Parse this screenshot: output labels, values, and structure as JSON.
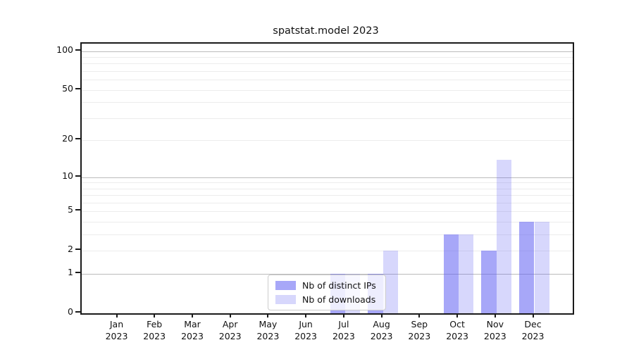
{
  "title": "spatstat.model 2023",
  "colors": {
    "bar_ips": "rgba(95,95,242,0.55)",
    "bar_downloads": "rgba(95,95,242,0.25)",
    "grid_major": "#bbbbbb",
    "grid_minor": "#ececec",
    "spine": "#1a1a1a",
    "text": "#111111",
    "legend_border": "#cccccc",
    "legend_bg": "rgba(255,255,255,0.8)"
  },
  "chart_data": {
    "type": "bar",
    "title": "spatstat.model 2023",
    "categories": [
      "Jan 2023",
      "Feb 2023",
      "Mar 2023",
      "Apr 2023",
      "May 2023",
      "Jun 2023",
      "Jul 2023",
      "Aug 2023",
      "Sep 2023",
      "Oct 2023",
      "Nov 2023",
      "Dec 2023"
    ],
    "series": [
      {
        "name": "Nb of distinct IPs",
        "values": [
          0,
          0,
          0,
          0,
          0,
          0,
          1,
          1,
          0,
          3,
          2,
          4
        ]
      },
      {
        "name": "Nb of downloads",
        "values": [
          0,
          0,
          0,
          0,
          0,
          0,
          1,
          2,
          0,
          3,
          14,
          4
        ]
      }
    ],
    "xlabel": "",
    "ylabel": "",
    "yscale": "log1p",
    "yticks": [
      0,
      1,
      2,
      5,
      10,
      20,
      50,
      100
    ],
    "grid_major_at": [
      1,
      10,
      100
    ],
    "grid_minor_at": [
      2,
      3,
      4,
      5,
      6,
      7,
      8,
      9,
      20,
      30,
      40,
      50,
      60,
      70,
      80,
      90
    ],
    "ylim": [
      0,
      115
    ],
    "grid": true,
    "legend_position": "inside-bottom-center"
  }
}
